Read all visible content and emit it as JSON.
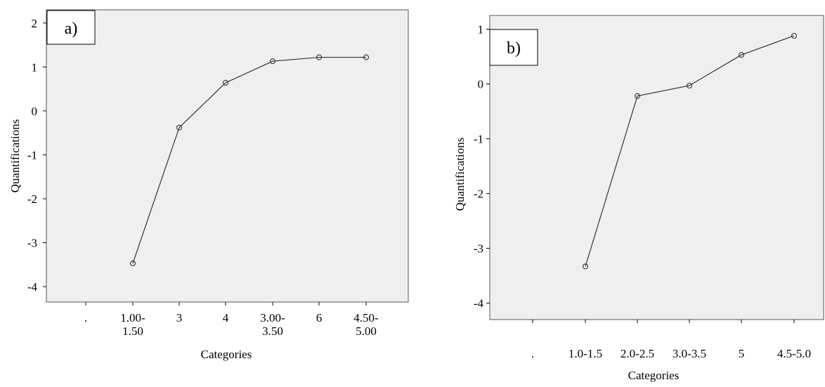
{
  "chart_data": [
    {
      "type": "line",
      "panel_label": "a)",
      "categories": [
        ".",
        "1.00-\n1.50",
        "3",
        "4",
        "3.00-\n3.50",
        "6",
        "4.50-\n5.00"
      ],
      "series": [
        {
          "values": [
            null,
            -3.47,
            -0.38,
            0.64,
            1.13,
            1.22,
            1.22
          ]
        }
      ],
      "xlabel": "Categories",
      "ylabel": "Quantifications",
      "ylim": [
        -4.35,
        2.3
      ],
      "yticks": [
        2,
        1,
        0,
        -1,
        -2,
        -3,
        -4
      ],
      "grid": false,
      "plot_background": "#efefef",
      "line_color": "#333333"
    },
    {
      "type": "line",
      "panel_label": "b)",
      "categories": [
        ".",
        "1.0-1.5",
        "2.0-2.5",
        "3.0-3.5",
        "5",
        "4.5-5.0"
      ],
      "series": [
        {
          "values": [
            null,
            -3.33,
            -0.22,
            -0.03,
            0.53,
            0.88
          ]
        }
      ],
      "xlabel": "Categories",
      "ylabel": "Quantifications",
      "ylim": [
        -4.3,
        1.25
      ],
      "yticks": [
        1,
        0,
        -1,
        -2,
        -3,
        -4
      ],
      "grid": false,
      "plot_background": "#efefef",
      "line_color": "#333333"
    }
  ]
}
